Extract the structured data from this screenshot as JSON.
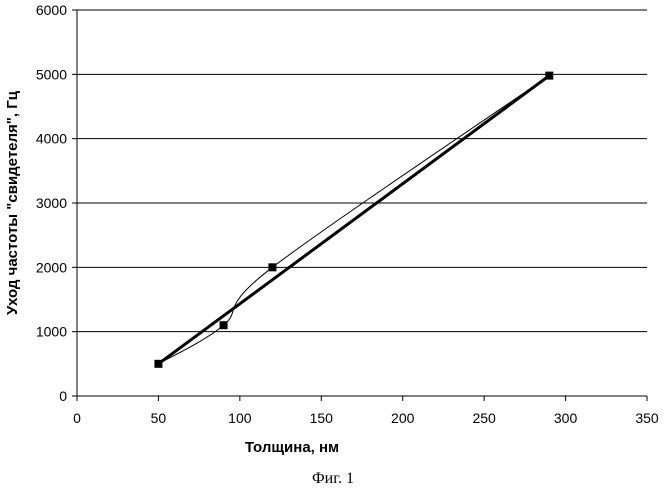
{
  "chart_data": {
    "type": "line",
    "xlabel": "Толщина, нм",
    "ylabel": "Уход частоты \"свидетеля\", Гц",
    "xlim": [
      0,
      350
    ],
    "ylim": [
      0,
      6000
    ],
    "x_ticks": [
      "0",
      "50",
      "100",
      "150",
      "200",
      "250",
      "300",
      "350"
    ],
    "y_ticks": [
      "0",
      "1000",
      "2000",
      "3000",
      "4000",
      "5000",
      "6000"
    ],
    "grid": "horizontal",
    "legend": "none",
    "series": [
      {
        "style": "thin smoothed line with square markers",
        "color": "#000000",
        "points": [
          {
            "x": 50,
            "y": 500
          },
          {
            "x": 90,
            "y": 1100
          },
          {
            "x": 120,
            "y": 2000
          },
          {
            "x": 290,
            "y": 4980
          }
        ]
      },
      {
        "style": "thick straight trend line",
        "color": "#000000",
        "points": [
          {
            "x": 50,
            "y": 500
          },
          {
            "x": 290,
            "y": 4980
          }
        ]
      }
    ]
  },
  "caption": "Фиг. 1"
}
